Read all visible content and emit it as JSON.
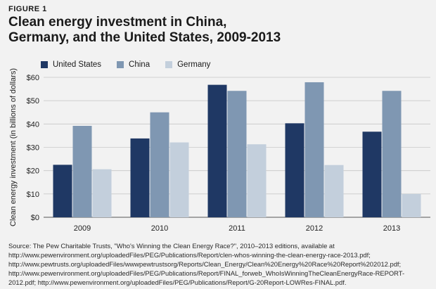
{
  "figure_label": "FIGURE 1",
  "title_line1": "Clean energy investment in China,",
  "title_line2": "Germany, and the United States, 2009-2013",
  "source_note": "Source: The Pew Charitable Trusts, \"Who's Winning the Clean Energy Race?\", 2010–2013 editions, available at http://www.pewenvironment.org/uploadedFiles/PEG/Publications/Report/clen-whos-winning-the-clean-energy-race-2013.pdf; http://www.pewtrusts.org/uploadedFiles/wwwpewtrustsorg/Reports/Clean_Energy/Clean%20Energy%20Race%20Report%202012.pdf; http://www.pewenvironment.org/uploadedFiles/PEG/Publications/Report/FINAL_forweb_WhoIsWinningTheCleanEnergyRace-REPORT-2012.pdf; http://www.pewenvironment.org/uploadedFiles/PEG/Publications/Report/G-20Report-LOWRes-FINAL.pdf.",
  "chart_data": {
    "type": "bar",
    "categories": [
      "2009",
      "2010",
      "2011",
      "2012",
      "2013"
    ],
    "series": [
      {
        "name": "United States",
        "color": "#1f3864",
        "values": [
          22.5,
          33.8,
          56.8,
          40.3,
          36.7
        ]
      },
      {
        "name": "China",
        "color": "#7f97b2",
        "values": [
          39.2,
          45.0,
          54.2,
          57.9,
          54.2
        ]
      },
      {
        "name": "Germany",
        "color": "#c3cfdc",
        "values": [
          20.6,
          32.1,
          31.3,
          22.4,
          10.0
        ]
      }
    ],
    "ylabel": "Clean energy investment (in billions of dollars)",
    "ylim": [
      0,
      60
    ],
    "yticks": [
      0,
      10,
      20,
      30,
      40,
      50,
      60
    ],
    "ytick_labels": [
      "$0",
      "$10",
      "$20",
      "$30",
      "$40",
      "$50",
      "$60"
    ],
    "grid": true,
    "legend_position": "top-left"
  }
}
